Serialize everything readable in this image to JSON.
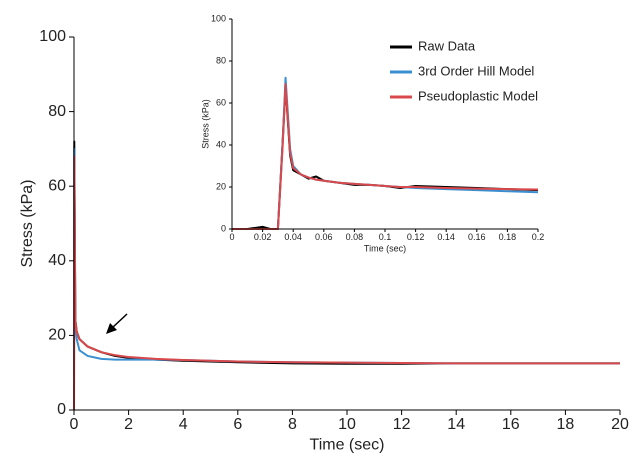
{
  "chart_data": [
    {
      "type": "line",
      "xlabel": "Time (sec)",
      "ylabel": "Stress (kPa)",
      "x": [
        0,
        0.01,
        0.05,
        0.1,
        0.2,
        0.5,
        1,
        1.5,
        2,
        3,
        4,
        6,
        8,
        10,
        12,
        14,
        16,
        18,
        20
      ],
      "series": [
        {
          "color": "#000000",
          "values": [
            0,
            72,
            24,
            21,
            19,
            17,
            15.5,
            14.5,
            14,
            13.5,
            13.2,
            12.8,
            12.5,
            12.4,
            12.4,
            12.5,
            12.5,
            12.5,
            12.5
          ]
        },
        {
          "color": "#3a8fd0",
          "values": [
            0,
            70,
            22,
            19,
            16,
            14.5,
            13.7,
            13.5,
            13.5,
            13.5,
            13.4,
            13,
            12.8,
            12.7,
            12.6,
            12.5,
            12.5,
            12.5,
            12.5
          ]
        },
        {
          "color": "#d9484a",
          "values": [
            0,
            68,
            24,
            21,
            19,
            17,
            15.5,
            14.7,
            14.2,
            13.7,
            13.4,
            13,
            12.8,
            12.7,
            12.6,
            12.5,
            12.5,
            12.5,
            12.5
          ]
        }
      ],
      "xlim": [
        0,
        20
      ],
      "xticks": [
        0,
        2,
        4,
        6,
        8,
        10,
        12,
        14,
        16,
        18,
        20
      ],
      "ylim": [
        0,
        100
      ],
      "yticks": [
        0,
        20,
        40,
        60,
        80,
        100
      ]
    },
    {
      "type": "line",
      "xlabel": "Time (sec)",
      "ylabel": "Stress (kPa)",
      "x": [
        0,
        0.01,
        0.02,
        0.025,
        0.03,
        0.033,
        0.035,
        0.038,
        0.04,
        0.045,
        0.05,
        0.055,
        0.06,
        0.07,
        0.08,
        0.09,
        0.1,
        0.11,
        0.12,
        0.14,
        0.16,
        0.18,
        0.2
      ],
      "series": [
        {
          "name": "Raw Data",
          "color": "#000000",
          "values": [
            0,
            0,
            1,
            0,
            0,
            40,
            68,
            35,
            28,
            26,
            24,
            25,
            23,
            22,
            21,
            21,
            20.5,
            19.5,
            20.5,
            20,
            19.5,
            19,
            18.5
          ]
        },
        {
          "name": "3rd Order Hill Model",
          "color": "#3a8fd0",
          "values": [
            0,
            0,
            0,
            0,
            0,
            40,
            72,
            38,
            30,
            26,
            24.5,
            23.5,
            23,
            22,
            21.5,
            21,
            20.5,
            20,
            19.5,
            19,
            18.5,
            18,
            17.5
          ]
        },
        {
          "name": "Pseudoplastic Model",
          "color": "#d9484a",
          "values": [
            0,
            0,
            0,
            0,
            0,
            38,
            69,
            36,
            29,
            26,
            24.5,
            23.5,
            23,
            22,
            21.5,
            21,
            20.5,
            20,
            20,
            19.5,
            19.2,
            19,
            18.8
          ]
        }
      ],
      "xlim": [
        0,
        0.2
      ],
      "xticks": [
        0,
        0.02,
        0.04,
        0.06,
        0.08,
        0.1,
        0.12,
        0.14,
        0.16,
        0.18,
        0.2
      ],
      "ylim": [
        0,
        100
      ],
      "yticks": [
        0,
        20,
        40,
        60,
        80,
        100
      ],
      "legend": "upper right"
    }
  ]
}
